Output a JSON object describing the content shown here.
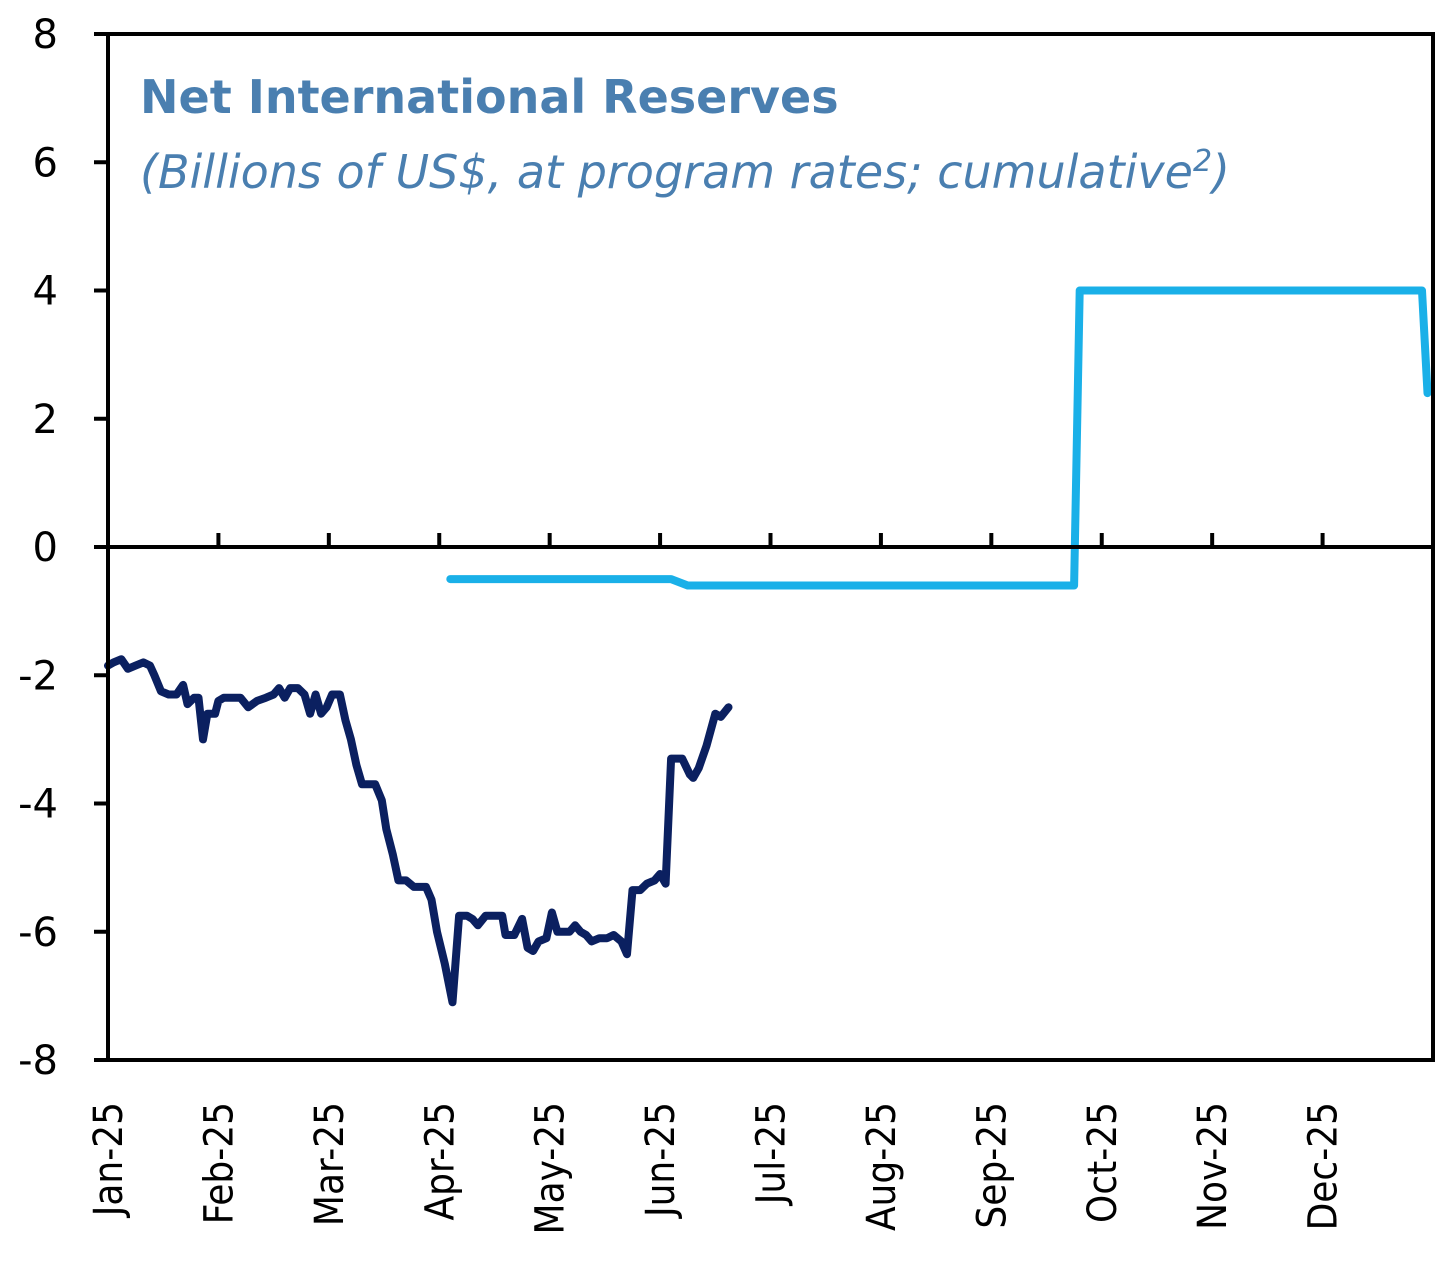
{
  "chart_data": {
    "type": "line",
    "title": "Net International Reserves",
    "subtitle_text": "(Billions of US$, at program rates; cumulative",
    "subtitle_superscript": "2",
    "subtitle_close": ")",
    "xlabel": "",
    "ylabel": "",
    "ylim": [
      -8,
      8
    ],
    "yticks": [
      "8",
      "6",
      "4",
      "2",
      "0",
      "-2",
      "-4",
      "-6",
      "-8"
    ],
    "x_categories": [
      "Jan-25",
      "Feb-25",
      "Mar-25",
      "Apr-25",
      "May-25",
      "Jun-25",
      "Jul-25",
      "Aug-25",
      "Sep-25",
      "Oct-25",
      "Nov-25",
      "Dec-25"
    ],
    "grid": false,
    "legend": "none",
    "colors": {
      "title": "#4a7fb0",
      "actual": "#0b2060",
      "target": "#1ab0e8",
      "axis": "#000000"
    },
    "series": [
      {
        "id": "actual",
        "x_unit": "months since start of Jan-25",
        "points": [
          [
            0.0,
            -1.85
          ],
          [
            0.05,
            -1.8
          ],
          [
            0.12,
            -1.75
          ],
          [
            0.18,
            -1.9
          ],
          [
            0.25,
            -1.85
          ],
          [
            0.32,
            -1.8
          ],
          [
            0.38,
            -1.85
          ],
          [
            0.42,
            -2.0
          ],
          [
            0.48,
            -2.25
          ],
          [
            0.55,
            -2.3
          ],
          [
            0.62,
            -2.3
          ],
          [
            0.68,
            -2.15
          ],
          [
            0.72,
            -2.45
          ],
          [
            0.78,
            -2.35
          ],
          [
            0.82,
            -2.35
          ],
          [
            0.86,
            -3.0
          ],
          [
            0.9,
            -2.6
          ],
          [
            0.97,
            -2.6
          ],
          [
            1.0,
            -2.4
          ],
          [
            1.05,
            -2.35
          ],
          [
            1.1,
            -2.35
          ],
          [
            1.2,
            -2.35
          ],
          [
            1.27,
            -2.5
          ],
          [
            1.35,
            -2.4
          ],
          [
            1.43,
            -2.35
          ],
          [
            1.5,
            -2.3
          ],
          [
            1.55,
            -2.2
          ],
          [
            1.6,
            -2.35
          ],
          [
            1.65,
            -2.2
          ],
          [
            1.72,
            -2.2
          ],
          [
            1.78,
            -2.3
          ],
          [
            1.83,
            -2.6
          ],
          [
            1.88,
            -2.3
          ],
          [
            1.93,
            -2.6
          ],
          [
            1.98,
            -2.5
          ],
          [
            2.03,
            -2.3
          ],
          [
            2.1,
            -2.3
          ],
          [
            2.15,
            -2.7
          ],
          [
            2.2,
            -3.0
          ],
          [
            2.25,
            -3.4
          ],
          [
            2.3,
            -3.7
          ],
          [
            2.35,
            -3.7
          ],
          [
            2.42,
            -3.7
          ],
          [
            2.48,
            -3.95
          ],
          [
            2.52,
            -4.4
          ],
          [
            2.58,
            -4.8
          ],
          [
            2.63,
            -5.2
          ],
          [
            2.7,
            -5.2
          ],
          [
            2.77,
            -5.3
          ],
          [
            2.83,
            -5.3
          ],
          [
            2.88,
            -5.3
          ],
          [
            2.93,
            -5.5
          ],
          [
            2.98,
            -6.0
          ],
          [
            3.05,
            -6.5
          ],
          [
            3.12,
            -7.1
          ],
          [
            3.18,
            -5.75
          ],
          [
            3.25,
            -5.75
          ],
          [
            3.3,
            -5.8
          ],
          [
            3.35,
            -5.9
          ],
          [
            3.42,
            -5.75
          ],
          [
            3.5,
            -5.75
          ],
          [
            3.57,
            -5.75
          ],
          [
            3.6,
            -6.05
          ],
          [
            3.68,
            -6.05
          ],
          [
            3.75,
            -5.8
          ],
          [
            3.8,
            -6.25
          ],
          [
            3.85,
            -6.3
          ],
          [
            3.9,
            -6.15
          ],
          [
            3.97,
            -6.1
          ],
          [
            4.02,
            -5.7
          ],
          [
            4.07,
            -6.0
          ],
          [
            4.13,
            -6.0
          ],
          [
            4.18,
            -6.0
          ],
          [
            4.23,
            -5.9
          ],
          [
            4.28,
            -6.0
          ],
          [
            4.33,
            -6.05
          ],
          [
            4.38,
            -6.15
          ],
          [
            4.45,
            -6.1
          ],
          [
            4.52,
            -6.1
          ],
          [
            4.58,
            -6.05
          ],
          [
            4.65,
            -6.15
          ],
          [
            4.7,
            -6.35
          ],
          [
            4.75,
            -5.35
          ],
          [
            4.82,
            -5.35
          ],
          [
            4.88,
            -5.25
          ],
          [
            4.95,
            -5.2
          ],
          [
            5.0,
            -5.1
          ],
          [
            5.05,
            -5.25
          ],
          [
            5.1,
            -3.3
          ],
          [
            5.15,
            -3.3
          ],
          [
            5.2,
            -3.3
          ],
          [
            5.27,
            -3.55
          ],
          [
            5.3,
            -3.6
          ],
          [
            5.35,
            -3.45
          ],
          [
            5.42,
            -3.1
          ],
          [
            5.5,
            -2.6
          ],
          [
            5.55,
            -2.65
          ],
          [
            5.62,
            -2.5
          ]
        ]
      },
      {
        "id": "target",
        "x_unit": "months since start of Jan-25",
        "points": [
          [
            3.1,
            -0.5
          ],
          [
            5.1,
            -0.5
          ],
          [
            5.25,
            -0.6
          ],
          [
            8.75,
            -0.6
          ],
          [
            8.8,
            4.0
          ],
          [
            11.9,
            4.0
          ],
          [
            11.95,
            2.4
          ]
        ]
      }
    ]
  }
}
